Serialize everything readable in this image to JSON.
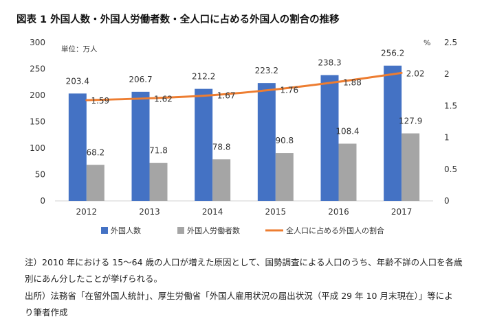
{
  "title": "図表 1  外国人数・外国人労働者数・全人口に占める外国人の割合の推移",
  "chart_data": {
    "type": "bar",
    "categories": [
      "2012",
      "2013",
      "2014",
      "2015",
      "2016",
      "2017"
    ],
    "series": [
      {
        "name": "外国人数",
        "type": "bar",
        "axis": "left",
        "color": "#4472C4",
        "values": [
          203.4,
          206.7,
          212.2,
          223.2,
          238.3,
          256.2
        ],
        "labels": [
          "203.4",
          "206.7",
          "212.2",
          "223.2",
          "238.3",
          "256.2"
        ]
      },
      {
        "name": "外国人労働者数",
        "type": "bar",
        "axis": "left",
        "color": "#A5A5A5",
        "values": [
          68.2,
          71.8,
          78.8,
          90.8,
          108.4,
          127.9
        ],
        "labels": [
          "68.2",
          "71.8",
          "78.8",
          "90.8",
          "108.4",
          "127.9"
        ]
      },
      {
        "name": "全人口に占める外国人の割合",
        "type": "line",
        "axis": "right",
        "color": "#ED7D31",
        "values": [
          1.59,
          1.62,
          1.67,
          1.76,
          1.88,
          2.02
        ],
        "labels": [
          "1.59",
          "1.62",
          "1.67",
          "1.76",
          "1.88",
          "2.02"
        ]
      }
    ],
    "y_left": {
      "range": [
        0,
        300
      ],
      "ticks": [
        "0",
        "50",
        "100",
        "150",
        "200",
        "250",
        "300"
      ],
      "unit_label": "単位：万人"
    },
    "y_right": {
      "range": [
        0,
        2.5
      ],
      "ticks": [
        "0",
        "0.5",
        "1",
        "1.5",
        "2",
        "2.5"
      ],
      "unit_label": "%"
    },
    "grid": false,
    "legend": "bottom"
  },
  "notes": {
    "note_line1": "注）2010 年における 15～64 歳の人口が増えた原因として、国勢調査による人口のうち、年齢不詳の人口を各歳",
    "note_line2": "別にあん分したことが挙げられる。",
    "source_line1": "出所）法務省「在留外国人統計」、厚生労働省「外国人雇用状況の届出状況（平成 29 年 10 月末現在）」等によ",
    "source_line2": "り筆者作成"
  }
}
